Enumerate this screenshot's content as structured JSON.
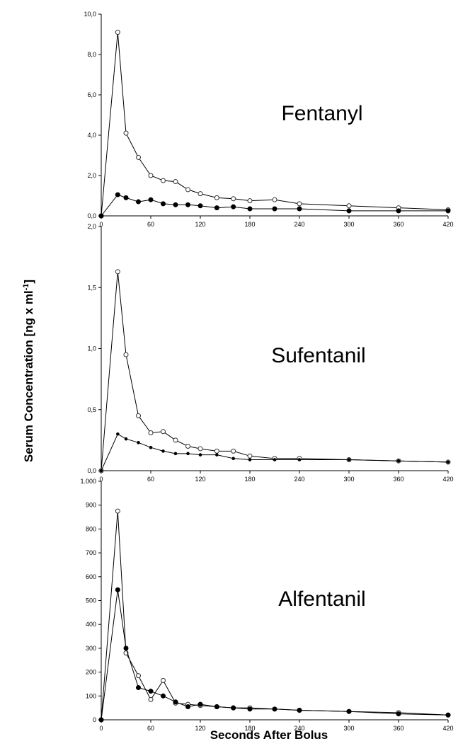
{
  "figure": {
    "ylabel_shared": "Serum Concentration [ng x ml-1]",
    "xlabel_shared": "Seconds After Bolus"
  },
  "chart_data": [
    {
      "type": "line",
      "title": "Fentanyl",
      "xticks": [
        0,
        60,
        120,
        180,
        240,
        300,
        360,
        420
      ],
      "xlim": [
        0,
        420
      ],
      "ylim": [
        0,
        10
      ],
      "yticks": [
        0,
        2,
        4,
        6,
        8,
        10
      ],
      "ytick_labels": [
        "0,0",
        "2,0",
        "4,0",
        "6,0",
        "8,0",
        "10,0"
      ],
      "grid": false,
      "series": [
        {
          "marker": "open",
          "x": [
            0,
            20,
            30,
            45,
            60,
            75,
            90,
            105,
            120,
            140,
            160,
            180,
            210,
            240,
            300,
            360,
            420
          ],
          "y": [
            0,
            9.1,
            4.1,
            2.9,
            2.0,
            1.75,
            1.7,
            1.3,
            1.1,
            0.9,
            0.85,
            0.75,
            0.8,
            0.6,
            0.5,
            0.4,
            0.3
          ]
        },
        {
          "marker": "filled",
          "x": [
            0,
            20,
            30,
            45,
            60,
            75,
            90,
            105,
            120,
            140,
            160,
            180,
            210,
            240,
            300,
            360,
            420
          ],
          "y": [
            0,
            1.05,
            0.9,
            0.7,
            0.8,
            0.6,
            0.55,
            0.55,
            0.5,
            0.4,
            0.45,
            0.35,
            0.35,
            0.35,
            0.25,
            0.25,
            0.25
          ]
        }
      ]
    },
    {
      "type": "line",
      "title": "Sufentanil",
      "xticks": [
        0,
        60,
        120,
        180,
        240,
        300,
        360,
        420
      ],
      "xlim": [
        0,
        420
      ],
      "ylim": [
        0,
        2
      ],
      "yticks": [
        0,
        0.5,
        1,
        1.5,
        2
      ],
      "ytick_labels": [
        "0,0",
        "0,5",
        "1,0",
        "1,5",
        "2,0"
      ],
      "grid": false,
      "series": [
        {
          "marker": "open",
          "x": [
            0,
            20,
            30,
            45,
            60,
            75,
            90,
            105,
            120,
            140,
            160,
            180,
            210,
            240,
            300,
            360,
            420
          ],
          "y": [
            0,
            1.63,
            0.95,
            0.45,
            0.31,
            0.32,
            0.25,
            0.2,
            0.18,
            0.16,
            0.16,
            0.12,
            0.1,
            0.1,
            0.09,
            0.08,
            0.07
          ]
        },
        {
          "marker": "small",
          "x": [
            0,
            20,
            30,
            45,
            60,
            75,
            90,
            105,
            120,
            140,
            160,
            180,
            210,
            240,
            300,
            360,
            420
          ],
          "y": [
            0,
            0.3,
            0.26,
            0.23,
            0.19,
            0.16,
            0.14,
            0.14,
            0.13,
            0.13,
            0.1,
            0.09,
            0.09,
            0.09,
            0.09,
            0.08,
            0.07
          ]
        }
      ]
    },
    {
      "type": "line",
      "title": "Alfentanil",
      "xticks": [
        0,
        60,
        120,
        180,
        240,
        300,
        360,
        420
      ],
      "xlim": [
        0,
        420
      ],
      "ylim": [
        0,
        1000
      ],
      "yticks": [
        0,
        100,
        200,
        300,
        400,
        500,
        600,
        700,
        800,
        900,
        1000
      ],
      "ytick_labels": [
        "0",
        "100",
        "200",
        "300",
        "400",
        "500",
        "600",
        "700",
        "800",
        "900",
        "1.000"
      ],
      "grid": false,
      "series": [
        {
          "marker": "open",
          "x": [
            0,
            20,
            30,
            45,
            60,
            75,
            90,
            105,
            120,
            140,
            160,
            180,
            210,
            240,
            300,
            360,
            420
          ],
          "y": [
            0,
            875,
            280,
            185,
            85,
            165,
            70,
            65,
            60,
            55,
            50,
            50,
            45,
            40,
            35,
            30,
            20
          ]
        },
        {
          "marker": "filled",
          "x": [
            0,
            20,
            30,
            45,
            60,
            75,
            90,
            105,
            120,
            140,
            160,
            180,
            210,
            240,
            300,
            360,
            420
          ],
          "y": [
            0,
            545,
            300,
            135,
            120,
            100,
            75,
            55,
            65,
            55,
            50,
            45,
            45,
            40,
            35,
            25,
            20
          ]
        }
      ]
    }
  ]
}
